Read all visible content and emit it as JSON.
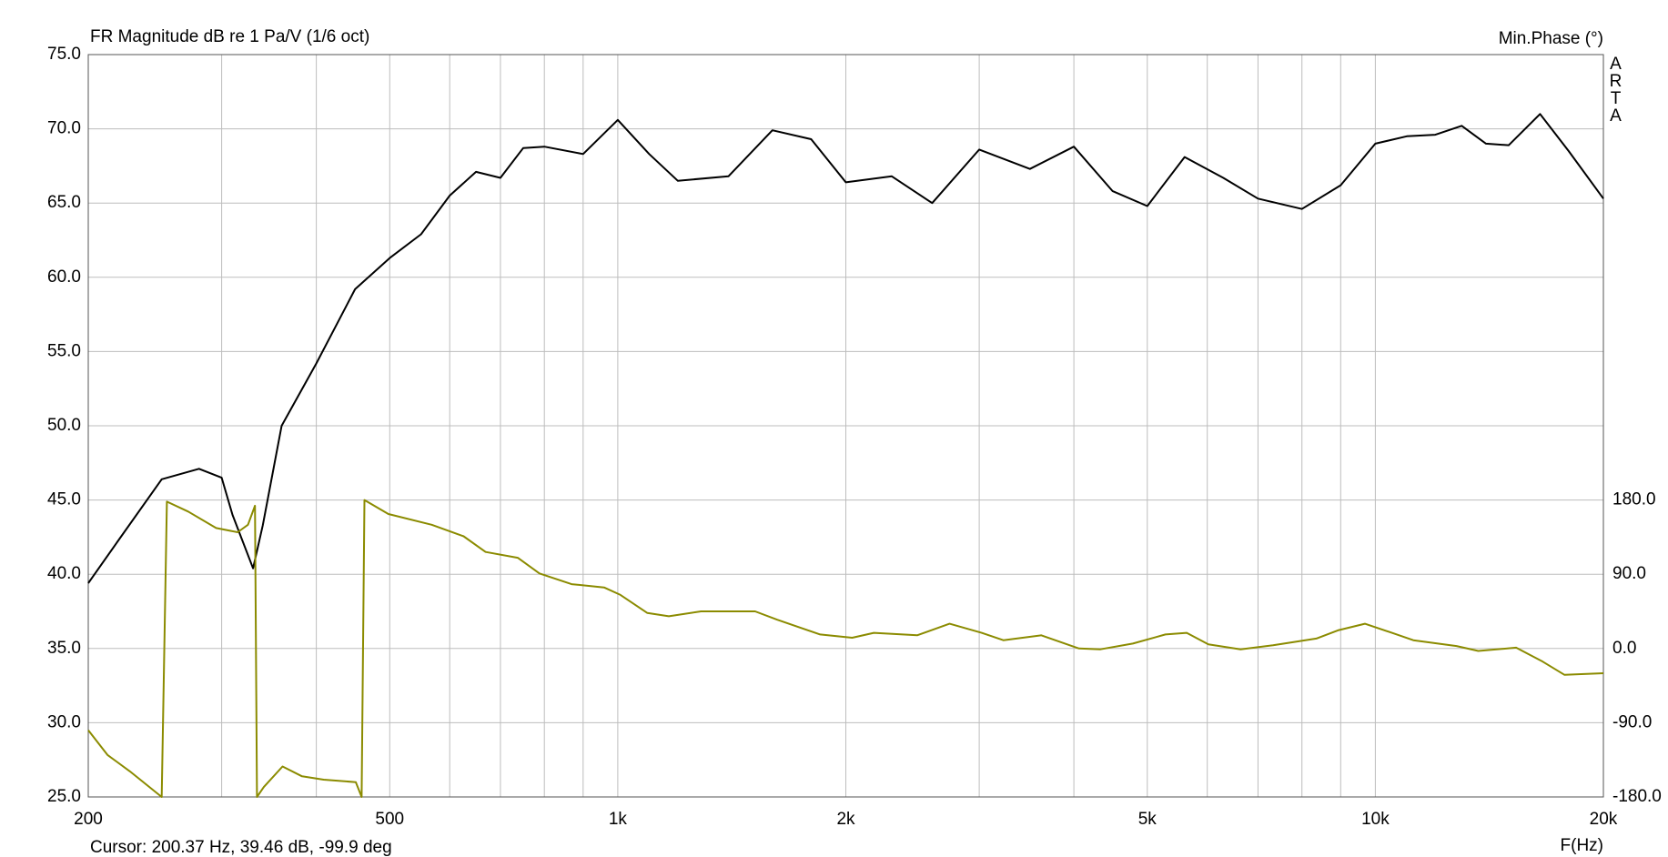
{
  "chart_data": {
    "type": "line",
    "title": "FR Magnitude dB re 1 Pa/V (1/6 oct)",
    "y2_title": "Min.Phase (°)",
    "watermark": "ARTA",
    "xlabel": "F(Hz)",
    "cursor_text": "Cursor: 200.37 Hz, 39.46 dB, -99.9 deg",
    "xscale": "log",
    "grid": true,
    "xlim": [
      200,
      20000
    ],
    "xticks": [
      200,
      500,
      {
        "value": 1000,
        "label": "1k"
      },
      {
        "value": 2000,
        "label": "2k"
      },
      {
        "value": 5000,
        "label": "5k"
      },
      {
        "value": 10000,
        "label": "10k"
      },
      {
        "value": 20000,
        "label": "20k"
      }
    ],
    "xgrid_minor": [
      300,
      400,
      600,
      700,
      800,
      900,
      3000,
      4000,
      6000,
      7000,
      8000,
      9000
    ],
    "ylim": [
      25,
      75
    ],
    "yticks": [
      {
        "value": 75,
        "label": "75.0"
      },
      {
        "value": 70,
        "label": "70.0"
      },
      {
        "value": 65,
        "label": "65.0"
      },
      {
        "value": 60,
        "label": "60.0"
      },
      {
        "value": 55,
        "label": "55.0"
      },
      {
        "value": 50,
        "label": "50.0"
      },
      {
        "value": 45,
        "label": "45.0"
      },
      {
        "value": 40,
        "label": "40.0"
      },
      {
        "value": 35,
        "label": "35.0"
      },
      {
        "value": 30,
        "label": "30.0"
      },
      {
        "value": 25,
        "label": "25.0"
      }
    ],
    "y2lim": [
      -180,
      720
    ],
    "y2ticks": [
      {
        "value": 180,
        "label": "180.0"
      },
      {
        "value": 90,
        "label": "90.0"
      },
      {
        "value": 0,
        "label": "0.0"
      },
      {
        "value": -90,
        "label": "-90.0"
      },
      {
        "value": -180,
        "label": "-180.0"
      }
    ],
    "series": [
      {
        "color": "#000000",
        "x": [
          200,
          220,
          250,
          280,
          300,
          310,
          330,
          340,
          360,
          400,
          450,
          500,
          550,
          600,
          650,
          700,
          750,
          800,
          900,
          1000,
          1100,
          1200,
          1400,
          1600,
          1800,
          2000,
          2300,
          2600,
          3000,
          3500,
          4000,
          4500,
          5000,
          5600,
          6300,
          7000,
          8000,
          9000,
          10000,
          11000,
          12000,
          13000,
          14000,
          15000,
          16500,
          18000,
          20000
        ],
        "values": [
          39.4,
          42.4,
          46.4,
          47.1,
          46.5,
          44.0,
          40.4,
          43.3,
          50.0,
          54.2,
          59.2,
          61.3,
          62.9,
          65.5,
          67.1,
          66.7,
          68.7,
          68.8,
          68.3,
          70.6,
          68.3,
          66.5,
          66.8,
          69.9,
          69.3,
          66.4,
          66.8,
          65.0,
          68.6,
          67.3,
          68.8,
          65.8,
          64.8,
          68.1,
          66.7,
          65.3,
          64.6,
          66.2,
          69.0,
          69.5,
          69.6,
          70.2,
          69.0,
          68.9,
          71.0,
          68.5,
          65.3
        ]
      },
      {
        "color": "#8b8b00",
        "axis": "y2",
        "x": [
          200,
          212,
          227,
          250,
          254,
          271,
          295,
          315,
          325,
          332,
          334,
          341,
          361,
          383,
          409,
          451,
          459,
          463,
          498,
          568,
          626,
          669,
          738,
          788,
          869,
          959,
          1008,
          1094,
          1168,
          1288,
          1518,
          1622,
          1850,
          2039,
          2178,
          2484,
          2741,
          3022,
          3228,
          3622,
          4062,
          4336,
          4785,
          5283,
          5637,
          6020,
          6640,
          7329,
          8356,
          8924,
          9686,
          10516,
          11224,
          12797,
          13674,
          15341,
          16633,
          17771,
          20000
        ],
        "values": [
          -99,
          -129,
          -149,
          -180,
          178,
          166,
          146,
          141,
          150,
          173,
          -180,
          -168,
          -143,
          -155,
          -159,
          -162,
          -180,
          180,
          163,
          150,
          136,
          117,
          110,
          91,
          78,
          74,
          65,
          43,
          39,
          45,
          45,
          35,
          17,
          13,
          19,
          16,
          30,
          19,
          10,
          16,
          0,
          -1,
          6,
          17,
          19,
          5,
          -1,
          4,
          12,
          22,
          30,
          19,
          10,
          3,
          -3,
          1,
          -16,
          -32,
          -30
        ]
      }
    ]
  }
}
